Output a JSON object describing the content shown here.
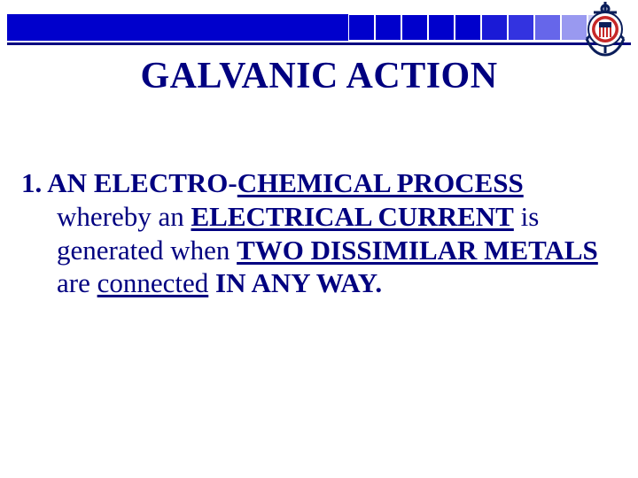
{
  "header": {
    "bar_color": "#0000cc",
    "square_colors": [
      "#0000cc",
      "#0000cc",
      "#0000cc",
      "#0000cc",
      "#0000cc",
      "#1a1ad6",
      "#3333e0",
      "#6666ea",
      "#9999f0",
      "#ccccf8"
    ],
    "underline_color": "#000080"
  },
  "logo": {
    "outer_color": "#0b1e5a",
    "ring_color": "#c62828",
    "stripes": [
      "#c62828",
      "#ffffff",
      "#c62828",
      "#ffffff",
      "#c62828",
      "#ffffff",
      "#c62828"
    ]
  },
  "title": "GALVANIC ACTION",
  "body": {
    "p1_num": "1. ",
    "p1_t1": "AN ELECTRO-",
    "p1_t2": "CHEMICAL PROCESS",
    "p1_t3": "whereby an ",
    "p1_t4": "ELECTRICAL CURRENT",
    "p1_t5": " is generated when ",
    "p1_t6": "TWO DISSIMILAR METALS",
    "p1_t7": " are ",
    "p1_t8": "connected",
    "p1_t9": " IN ANY WAY."
  },
  "colors": {
    "text": "#000080",
    "background": "#ffffff"
  },
  "typography": {
    "title_fontsize": 42,
    "body_fontsize": 31,
    "font_family": "Times New Roman"
  }
}
